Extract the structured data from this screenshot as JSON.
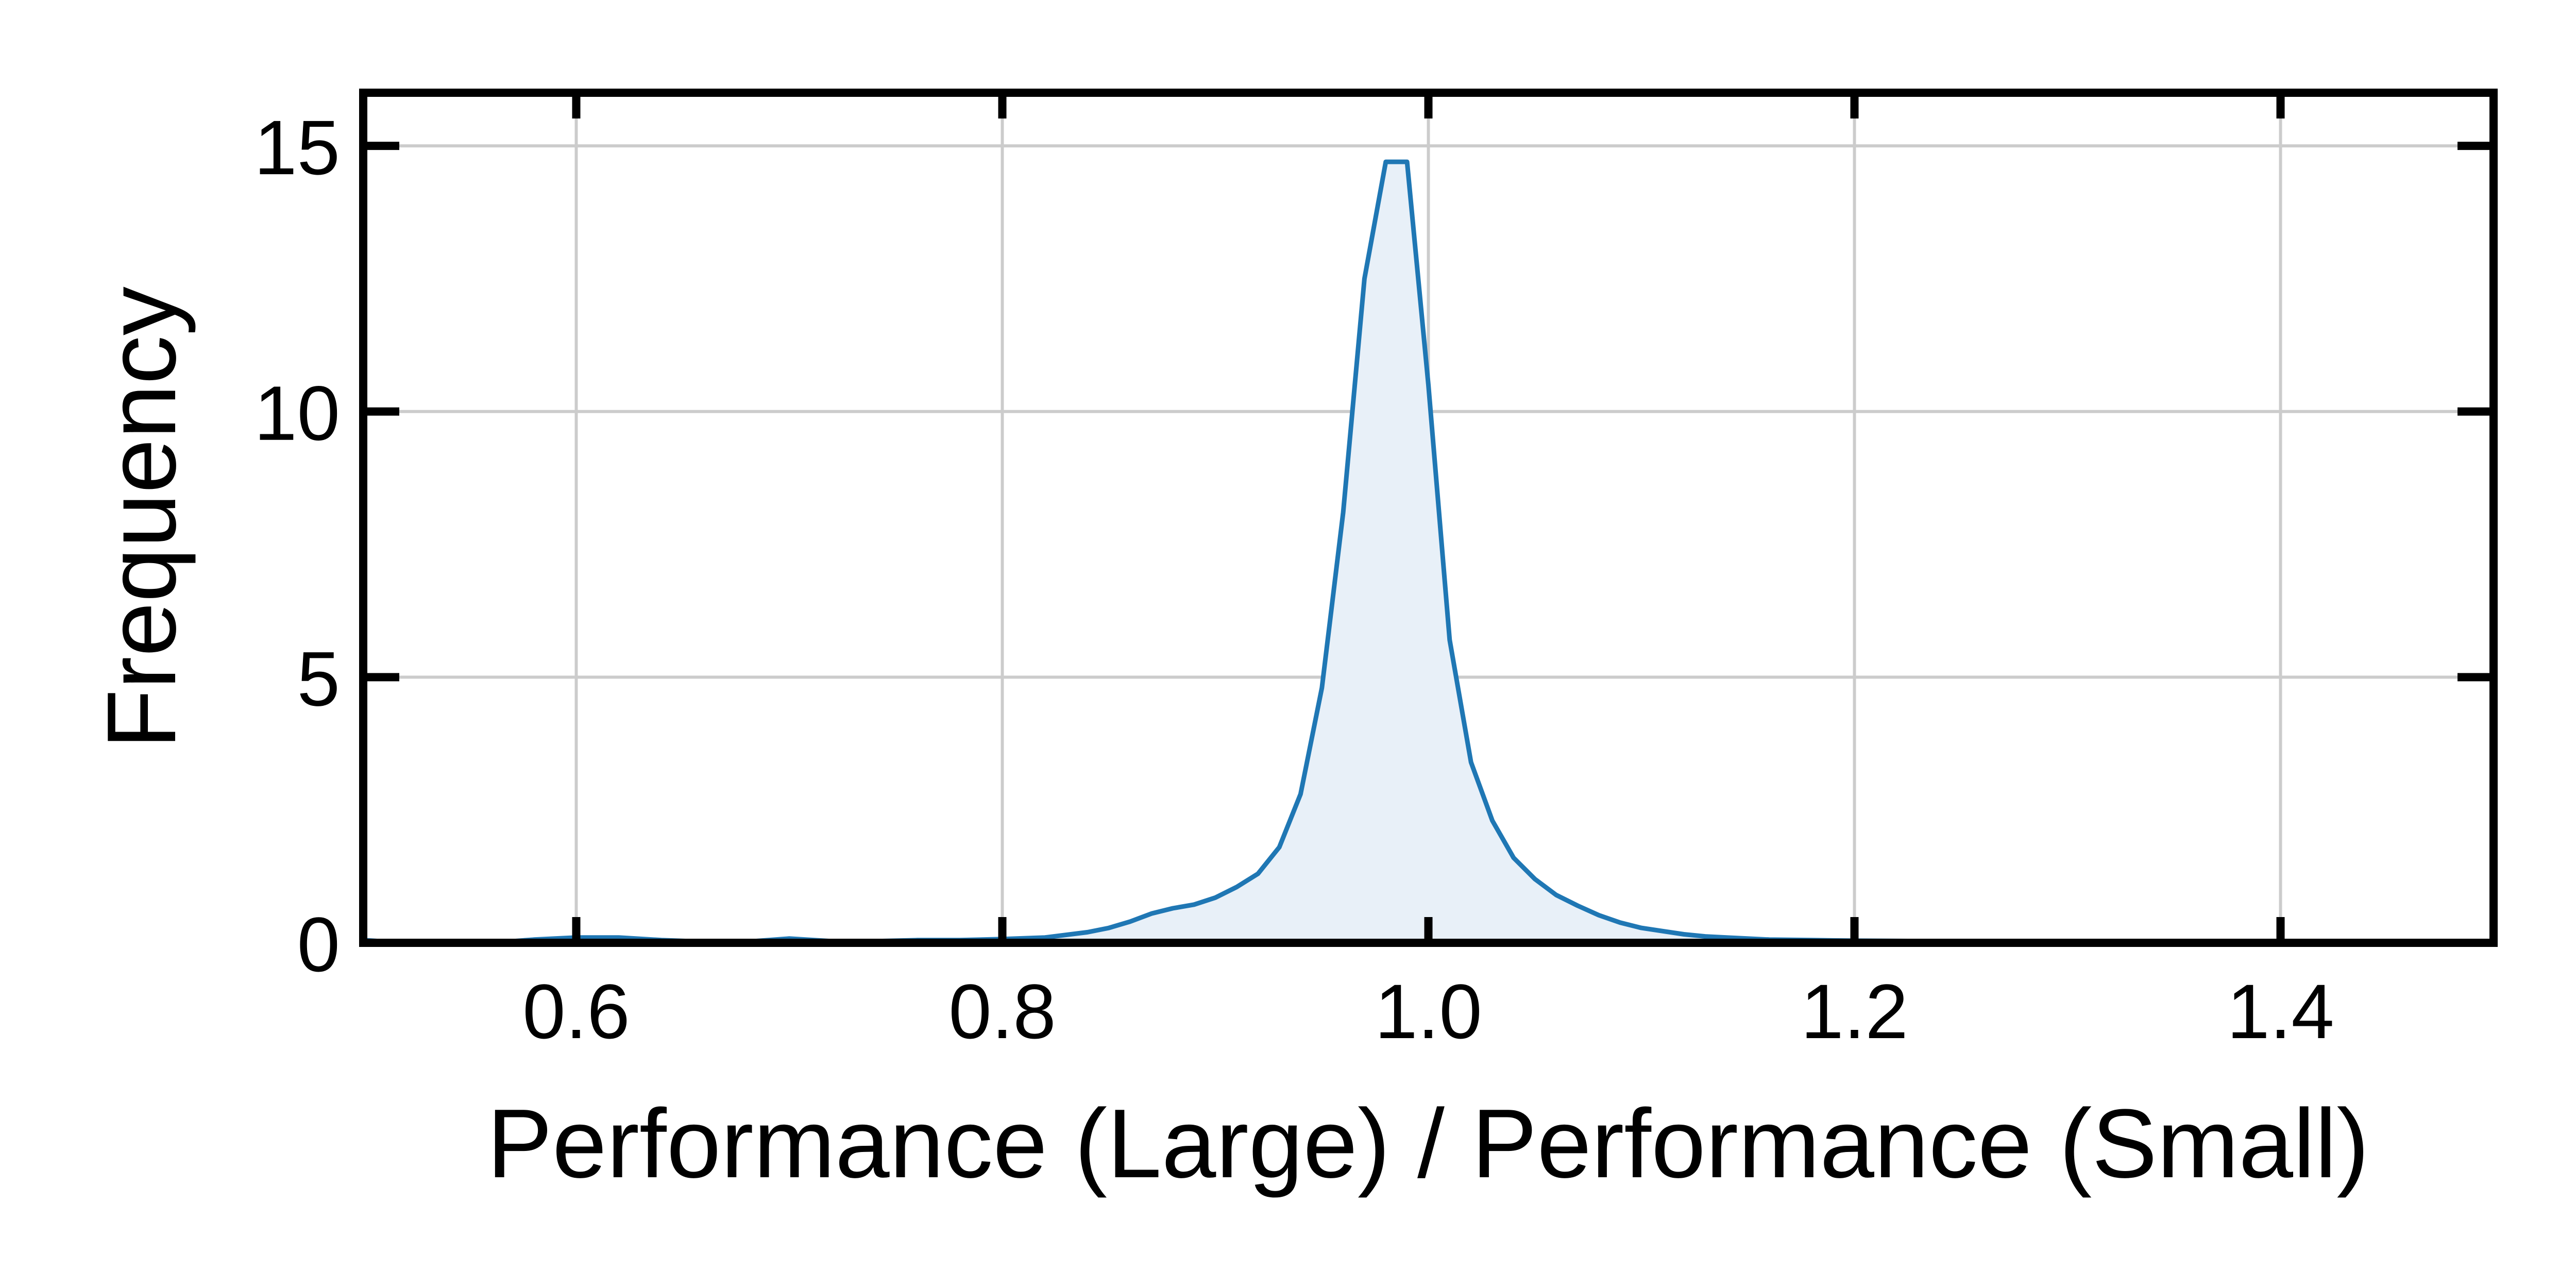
{
  "chart_data": {
    "type": "area",
    "title": "",
    "xlabel": "Performance (Large) / Performance (Small)",
    "ylabel": "Frequency",
    "xlim": [
      0.5,
      1.5
    ],
    "ylim": [
      0,
      16
    ],
    "x_ticks": [
      0.6,
      0.8,
      1.0,
      1.2,
      1.4
    ],
    "x_tick_labels": [
      "0.6",
      "0.8",
      "1.0",
      "1.2",
      "1.4"
    ],
    "y_ticks": [
      0,
      5,
      10,
      15
    ],
    "y_tick_labels": [
      "0",
      "5",
      "10",
      "15"
    ],
    "grid": true,
    "legend": "none",
    "line_color": "#1f77b4",
    "fill_color": "#e8f0f8",
    "series": [
      {
        "x": [
          0.5,
          0.52,
          0.54,
          0.56,
          0.58,
          0.6,
          0.62,
          0.64,
          0.66,
          0.68,
          0.7,
          0.72,
          0.74,
          0.76,
          0.78,
          0.8,
          0.82,
          0.84,
          0.85,
          0.86,
          0.87,
          0.88,
          0.89,
          0.9,
          0.91,
          0.92,
          0.93,
          0.94,
          0.95,
          0.96,
          0.97,
          0.98,
          0.99,
          1.0,
          1.01,
          1.02,
          1.03,
          1.04,
          1.05,
          1.06,
          1.07,
          1.08,
          1.09,
          1.1,
          1.11,
          1.12,
          1.13,
          1.14,
          1.16,
          1.18,
          1.2,
          1.24,
          1.28,
          1.32,
          1.36,
          1.4,
          1.45,
          1.5
        ],
        "y": [
          0.05,
          0.0,
          0.0,
          0.0,
          0.06,
          0.1,
          0.1,
          0.05,
          0.02,
          0.02,
          0.08,
          0.03,
          0.03,
          0.05,
          0.05,
          0.07,
          0.1,
          0.2,
          0.28,
          0.4,
          0.55,
          0.65,
          0.72,
          0.85,
          1.05,
          1.3,
          1.8,
          2.8,
          4.8,
          8.1,
          12.5,
          14.7,
          14.7,
          10.5,
          5.7,
          3.4,
          2.3,
          1.6,
          1.2,
          0.9,
          0.7,
          0.52,
          0.38,
          0.28,
          0.22,
          0.16,
          0.12,
          0.1,
          0.06,
          0.05,
          0.04,
          0.03,
          0.02,
          0.01,
          0.0,
          0.0,
          0.0,
          0.0
        ]
      }
    ]
  }
}
